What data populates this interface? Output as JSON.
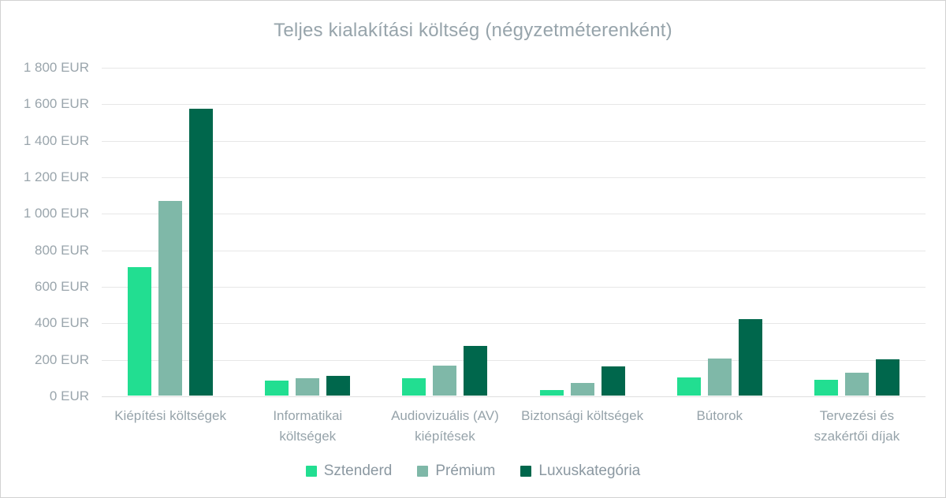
{
  "window": {
    "background": "#ffffff",
    "border_color": "#d2d2d2"
  },
  "chart_data": {
    "type": "bar",
    "title": "Teljes kialakítási költség (négyzetméterenként)",
    "unit": "EUR",
    "categories": [
      "Kiépítési költségek",
      "Informatikai költségek",
      "Audiovizuális (AV) kiépítések",
      "Biztonsági költségek",
      "Bútorok",
      "Tervezési és szakértői díjak"
    ],
    "category_label_lines": [
      [
        "Kiépítési költségek"
      ],
      [
        "Informatikai",
        "költségek"
      ],
      [
        "Audiovizuális (AV)",
        "kiépítések"
      ],
      [
        "Biztonsági költségek"
      ],
      [
        "Bútorok"
      ],
      [
        "Tervezési és",
        "szakértői díjak"
      ]
    ],
    "series": [
      {
        "name": "Sztenderd",
        "color": "#22de91",
        "values": [
          705,
          80,
          95,
          30,
          100,
          85
        ]
      },
      {
        "name": "Prémium",
        "color": "#7fb8a8",
        "values": [
          1065,
          95,
          165,
          70,
          205,
          125
        ]
      },
      {
        "name": "Luxuskategória",
        "color": "#00674c",
        "values": [
          1570,
          110,
          270,
          160,
          420,
          200
        ]
      }
    ],
    "y_axis": {
      "min": 0,
      "max": 1800,
      "step": 200,
      "tick_labels": [
        "0 EUR",
        "200 EUR",
        "400 EUR",
        "600 EUR",
        "800 EUR",
        "1 000 EUR",
        "1 200 EUR",
        "1 400 EUR",
        "1 600 EUR",
        "1 800 EUR"
      ]
    },
    "grid": true,
    "legend_position": "bottom",
    "gridline_color": "#e7e7e7",
    "text_color": "#9aa5ac"
  }
}
